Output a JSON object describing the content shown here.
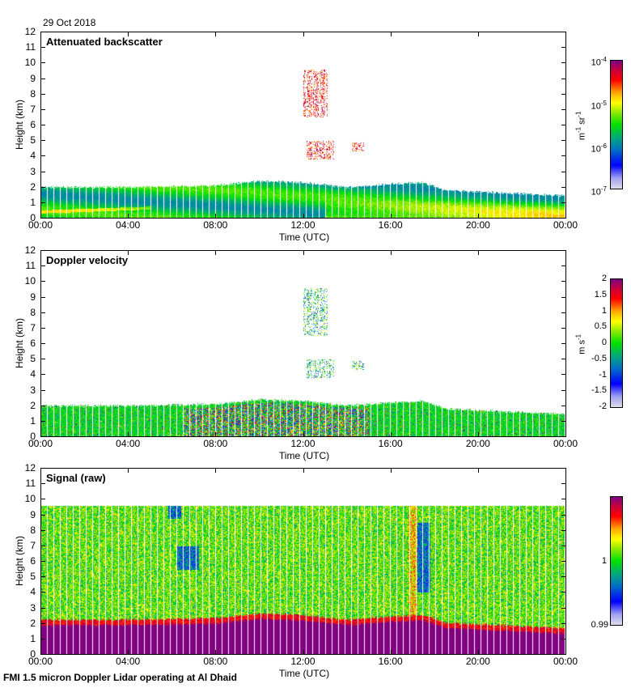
{
  "date": "29 Oct 2018",
  "footer": "FMI 1.5 micron Doppler Lidar operating at Al Dhaid",
  "colors": {
    "purple": "#800080",
    "red": "#ff0000",
    "orange": "#ff8c00",
    "yellow": "#ffff00",
    "green": "#00e000",
    "teal": "#00a080",
    "blue": "#0000ff",
    "lavender": "#dcdcf0"
  },
  "chart_data": [
    {
      "type": "heatmap",
      "title": "Attenuated backscatter",
      "xlabel": "Time (UTC)",
      "ylabel": "Height (km)",
      "xticks": [
        "00:00",
        "04:00",
        "08:00",
        "12:00",
        "16:00",
        "20:00",
        "00:00"
      ],
      "yticks": [
        "0",
        "1",
        "2",
        "3",
        "4",
        "5",
        "6",
        "7",
        "8",
        "9",
        "10",
        "11",
        "12"
      ],
      "ylim": [
        0,
        12
      ],
      "xlim_hours": [
        0,
        24
      ],
      "colorbar": {
        "unit_base": "m",
        "unit_exp1": "-1",
        "unit_mid": " sr",
        "unit_exp2": "-1",
        "scale": "log",
        "ticks": [
          {
            "base": "10",
            "exp": "-4"
          },
          {
            "base": "10",
            "exp": "-5"
          },
          {
            "base": "10",
            "exp": "-6"
          },
          {
            "base": "10",
            "exp": "-7"
          }
        ],
        "range": [
          1e-07,
          0.0001
        ]
      },
      "boundary_layer_top_km": {
        "00:00": 2.0,
        "04:00": 2.0,
        "08:00": 2.1,
        "12:00": 2.3,
        "16:00": 2.2,
        "20:00": 1.7,
        "24:00": 1.5
      },
      "cloud_features": [
        {
          "time_start_h": 12.0,
          "time_end_h": 13.1,
          "height_bottom_km": 6.5,
          "height_top_km": 9.6
        },
        {
          "time_start_h": 12.1,
          "time_end_h": 13.4,
          "height_bottom_km": 3.8,
          "height_top_km": 5.0
        },
        {
          "time_start_h": 14.2,
          "time_end_h": 14.8,
          "height_bottom_km": 4.3,
          "height_top_km": 4.9
        }
      ]
    },
    {
      "type": "heatmap",
      "title": "Doppler velocity",
      "xlabel": "Time (UTC)",
      "ylabel": "Height (km)",
      "xticks": [
        "00:00",
        "04:00",
        "08:00",
        "12:00",
        "16:00",
        "20:00",
        "00:00"
      ],
      "yticks": [
        "0",
        "1",
        "2",
        "3",
        "4",
        "5",
        "6",
        "7",
        "8",
        "9",
        "10",
        "11",
        "12"
      ],
      "ylim": [
        0,
        12
      ],
      "xlim_hours": [
        0,
        24
      ],
      "colorbar": {
        "unit_base": "m",
        "unit_mid": " s",
        "unit_exp2": "-1",
        "ticks": [
          "2",
          "1.5",
          "1",
          "0.5",
          "0",
          "-0.5",
          "-1",
          "-1.5",
          "-2"
        ],
        "range": [
          -2,
          2
        ]
      }
    },
    {
      "type": "heatmap",
      "title": "Signal (raw)",
      "xlabel": "Time (UTC)",
      "ylabel": "Height (km)",
      "xticks": [
        "00:00",
        "04:00",
        "08:00",
        "12:00",
        "16:00",
        "20:00",
        "00:00"
      ],
      "yticks": [
        "0",
        "1",
        "2",
        "3",
        "4",
        "5",
        "6",
        "7",
        "8",
        "9",
        "10",
        "11",
        "12"
      ],
      "ylim": [
        0,
        12
      ],
      "xlim_hours": [
        0,
        24
      ],
      "data_top_km": 9.6,
      "colorbar": {
        "ticks": [
          "1",
          "0.99"
        ],
        "range": [
          0.99,
          1.01
        ]
      }
    }
  ]
}
